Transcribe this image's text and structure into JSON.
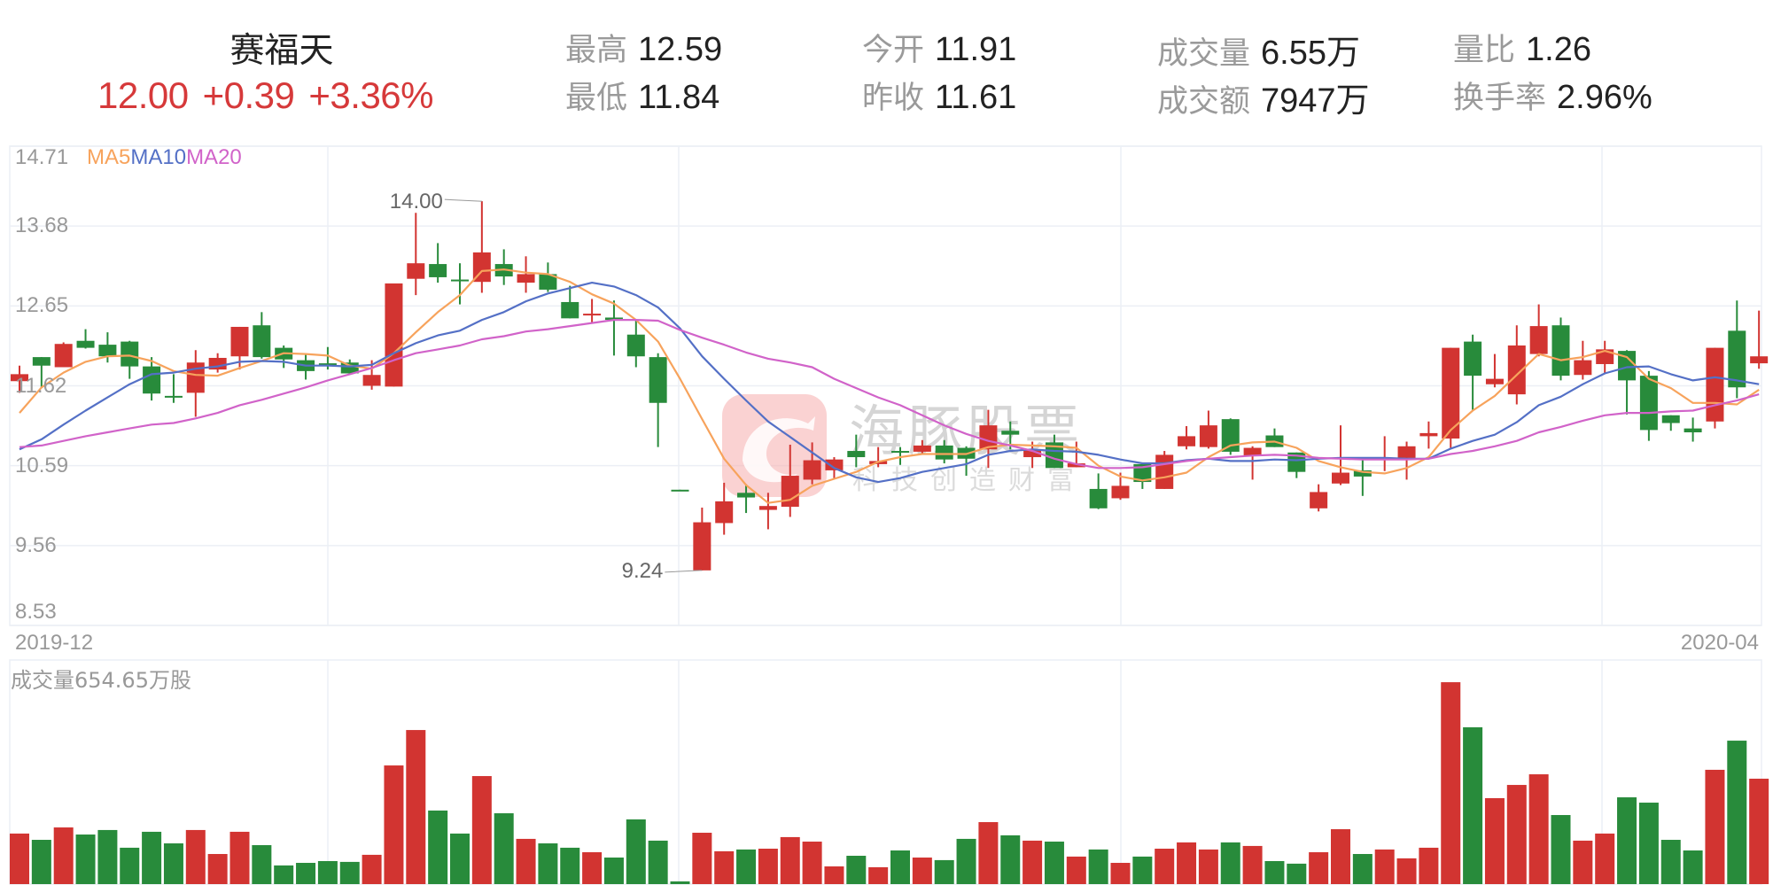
{
  "header": {
    "stock_name": "赛福天",
    "price": "12.00",
    "change": "+0.39",
    "change_pct": "+3.36%",
    "stats": [
      {
        "label": "最高",
        "value": "12.59"
      },
      {
        "label": "最低",
        "value": "11.84"
      },
      {
        "label": "今开",
        "value": "11.91"
      },
      {
        "label": "昨收",
        "value": "11.61"
      },
      {
        "label": "成交量",
        "value": "6.55万"
      },
      {
        "label": "成交额",
        "value": "7947万"
      },
      {
        "label": "量比",
        "value": "1.26"
      },
      {
        "label": "换手率",
        "value": "2.96%"
      }
    ]
  },
  "legend": {
    "ma5": "MA5",
    "ma10": "MA10",
    "ma20": "MA20"
  },
  "volume_label": "成交量654.65万股",
  "watermark": {
    "brand": "海豚股票",
    "slogan": "科技创造财富"
  },
  "colors": {
    "up": "#d23431",
    "down": "#288b3b",
    "ma5": "#f7a35c",
    "ma10": "#5470c6",
    "ma20": "#d163c9",
    "quote": "#d6393a",
    "grid": "#eceff5",
    "axis_text": "#999999"
  },
  "chart_data": [
    {
      "type": "candlestick",
      "title": "赛福天",
      "xlabel": "",
      "ylabel": "",
      "x_tick_labels": [
        "2019-12",
        "2020-04"
      ],
      "y_ticks": [
        14.71,
        13.68,
        12.65,
        11.62,
        10.59,
        9.56,
        8.53
      ],
      "ylim": [
        8.53,
        14.71
      ],
      "grid": true,
      "legend": [
        "MA5",
        "MA10",
        "MA20"
      ],
      "annotations": [
        {
          "label": "14.00",
          "index": 21,
          "type": "max"
        },
        {
          "label": "9.24",
          "index": 31,
          "type": "min"
        }
      ],
      "ohlc_fields": [
        "open",
        "high",
        "low",
        "close"
      ],
      "ohlc": [
        [
          11.68,
          11.88,
          11.53,
          11.77
        ],
        [
          11.99,
          11.99,
          11.59,
          11.88
        ],
        [
          11.86,
          12.18,
          11.86,
          12.16
        ],
        [
          12.2,
          12.35,
          12.1,
          12.11
        ],
        [
          12.15,
          12.31,
          11.92,
          12.0
        ],
        [
          12.19,
          12.2,
          11.71,
          11.87
        ],
        [
          11.87,
          11.99,
          11.43,
          11.52
        ],
        [
          11.49,
          11.77,
          11.4,
          11.47
        ],
        [
          11.53,
          12.08,
          11.22,
          11.92
        ],
        [
          11.83,
          12.04,
          11.79,
          11.98
        ],
        [
          12.0,
          12.38,
          11.83,
          12.38
        ],
        [
          12.4,
          12.57,
          11.97,
          11.99
        ],
        [
          12.11,
          12.14,
          11.85,
          11.96
        ],
        [
          11.95,
          12.02,
          11.7,
          11.81
        ],
        [
          11.91,
          12.12,
          11.83,
          11.88
        ],
        [
          11.92,
          11.96,
          11.78,
          11.78
        ],
        [
          11.62,
          11.95,
          11.57,
          11.76
        ],
        [
          11.61,
          12.94,
          11.61,
          12.94
        ],
        [
          13.0,
          13.85,
          12.79,
          13.2
        ],
        [
          13.19,
          13.46,
          12.95,
          13.02
        ],
        [
          12.99,
          13.2,
          12.67,
          12.97
        ],
        [
          12.96,
          14.0,
          12.82,
          13.34
        ],
        [
          13.19,
          13.38,
          12.92,
          13.03
        ],
        [
          12.95,
          13.29,
          12.82,
          13.06
        ],
        [
          13.06,
          13.21,
          12.83,
          12.86
        ],
        [
          12.7,
          12.91,
          12.49,
          12.49
        ],
        [
          12.54,
          12.74,
          12.43,
          12.55
        ],
        [
          12.5,
          12.72,
          12.01,
          12.47
        ],
        [
          12.28,
          12.46,
          11.86,
          12.0
        ],
        [
          11.99,
          12.04,
          10.83,
          11.4
        ],
        [
          10.28,
          10.28,
          10.27,
          10.27
        ],
        [
          9.24,
          10.05,
          9.24,
          9.86
        ],
        [
          9.85,
          10.37,
          9.7,
          10.13
        ],
        [
          10.24,
          10.35,
          9.98,
          10.18
        ],
        [
          10.02,
          10.24,
          9.77,
          10.07
        ],
        [
          10.06,
          10.86,
          9.93,
          10.46
        ],
        [
          10.41,
          10.89,
          10.35,
          10.66
        ],
        [
          10.53,
          10.7,
          10.42,
          10.67
        ],
        [
          10.78,
          10.99,
          10.57,
          10.7
        ],
        [
          10.61,
          10.83,
          10.57,
          10.65
        ],
        [
          10.78,
          10.83,
          10.6,
          10.77
        ],
        [
          10.77,
          10.92,
          10.74,
          10.85
        ],
        [
          10.85,
          10.92,
          10.62,
          10.67
        ],
        [
          10.82,
          10.84,
          10.46,
          10.68
        ],
        [
          10.8,
          11.31,
          10.56,
          11.11
        ],
        [
          11.04,
          11.16,
          10.8,
          10.99
        ],
        [
          10.7,
          10.9,
          10.56,
          10.8
        ],
        [
          10.89,
          10.99,
          10.56,
          10.56
        ],
        [
          10.57,
          10.9,
          10.57,
          10.62
        ],
        [
          10.29,
          10.49,
          10.03,
          10.04
        ],
        [
          10.17,
          10.5,
          10.15,
          10.33
        ],
        [
          10.61,
          10.61,
          10.29,
          10.38
        ],
        [
          10.29,
          10.78,
          10.29,
          10.73
        ],
        [
          10.84,
          11.1,
          10.8,
          10.97
        ],
        [
          10.83,
          11.3,
          10.81,
          11.11
        ],
        [
          11.19,
          11.2,
          10.73,
          10.77
        ],
        [
          10.72,
          10.84,
          10.41,
          10.82
        ],
        [
          10.98,
          11.07,
          10.83,
          10.83
        ],
        [
          10.76,
          10.76,
          10.43,
          10.51
        ],
        [
          10.04,
          10.35,
          10.0,
          10.25
        ],
        [
          10.36,
          11.11,
          10.34,
          10.5
        ],
        [
          10.53,
          10.69,
          10.2,
          10.45
        ],
        [
          10.68,
          10.97,
          10.52,
          10.69
        ],
        [
          10.69,
          10.9,
          10.41,
          10.84
        ],
        [
          10.97,
          11.16,
          10.81,
          11.01
        ],
        [
          10.94,
          12.11,
          10.81,
          12.11
        ],
        [
          12.19,
          12.28,
          11.31,
          11.75
        ],
        [
          11.64,
          12.03,
          11.6,
          11.71
        ],
        [
          11.51,
          12.4,
          11.38,
          12.14
        ],
        [
          12.03,
          12.67,
          12.0,
          12.39
        ],
        [
          12.4,
          12.5,
          11.69,
          11.75
        ],
        [
          11.76,
          12.2,
          11.7,
          11.95
        ],
        [
          11.9,
          12.2,
          11.78,
          12.09
        ],
        [
          12.07,
          12.08,
          11.25,
          11.69
        ],
        [
          11.75,
          11.81,
          10.91,
          11.05
        ],
        [
          11.24,
          11.24,
          11.04,
          11.14
        ],
        [
          11.07,
          11.21,
          10.9,
          11.02
        ],
        [
          11.16,
          12.11,
          11.07,
          12.11
        ],
        [
          12.33,
          12.72,
          11.46,
          11.6
        ],
        [
          11.91,
          12.59,
          11.84,
          12.0
        ]
      ],
      "series": [
        {
          "name": "MA5",
          "values": [
            11.27,
            11.6,
            11.79,
            11.93,
            12.0,
            12.01,
            11.94,
            11.81,
            11.76,
            11.75,
            11.85,
            11.94,
            12.04,
            12.03,
            12.01,
            11.88,
            11.84,
            12.04,
            12.31,
            12.57,
            12.79,
            13.1,
            13.12,
            13.08,
            13.06,
            12.96,
            12.8,
            12.68,
            12.47,
            12.19,
            11.71,
            11.19,
            10.68,
            10.34,
            10.11,
            10.15,
            10.33,
            10.42,
            10.51,
            10.64,
            10.7,
            10.74,
            10.74,
            10.74,
            10.83,
            10.86,
            10.85,
            10.84,
            10.82,
            10.59,
            10.45,
            10.4,
            10.44,
            10.5,
            10.7,
            10.85,
            10.89,
            10.9,
            10.82,
            10.65,
            10.57,
            10.51,
            10.49,
            10.56,
            10.7,
            11.05,
            11.3,
            11.49,
            11.76,
            12.03,
            11.95,
            11.99,
            12.07,
            11.99,
            11.71,
            11.59,
            11.4,
            11.4,
            11.38,
            11.57
          ]
        },
        {
          "name": "MA10",
          "values": [
            10.8,
            10.93,
            11.12,
            11.3,
            11.47,
            11.64,
            11.77,
            11.79,
            11.84,
            11.87,
            11.93,
            11.94,
            11.93,
            11.88,
            11.88,
            11.87,
            11.89,
            12.04,
            12.17,
            12.27,
            12.33,
            12.47,
            12.57,
            12.71,
            12.81,
            12.88,
            12.95,
            12.9,
            12.79,
            12.63,
            12.36,
            12.0,
            11.71,
            11.43,
            11.16,
            10.96,
            10.76,
            10.56,
            10.44,
            10.38,
            10.43,
            10.51,
            10.56,
            10.61,
            10.73,
            10.78,
            10.8,
            10.78,
            10.77,
            10.73,
            10.67,
            10.62,
            10.62,
            10.66,
            10.68,
            10.65,
            10.65,
            10.67,
            10.66,
            10.68,
            10.69,
            10.69,
            10.69,
            10.68,
            10.68,
            10.81,
            10.91,
            10.99,
            11.15,
            11.37,
            11.48,
            11.64,
            11.78,
            11.86,
            11.87,
            11.77,
            11.69,
            11.73,
            11.69,
            11.64
          ]
        },
        {
          "name": "MA20",
          "values": [
            10.83,
            10.85,
            10.91,
            10.97,
            11.02,
            11.07,
            11.12,
            11.14,
            11.2,
            11.27,
            11.37,
            11.44,
            11.52,
            11.6,
            11.69,
            11.77,
            11.85,
            11.95,
            12.04,
            12.09,
            12.14,
            12.22,
            12.26,
            12.32,
            12.35,
            12.39,
            12.43,
            12.47,
            12.47,
            12.46,
            12.34,
            12.24,
            12.15,
            12.05,
            11.97,
            11.92,
            11.86,
            11.71,
            11.59,
            11.47,
            11.37,
            11.24,
            11.11,
            11.0,
            10.91,
            10.85,
            10.78,
            10.68,
            10.61,
            10.56,
            10.56,
            10.57,
            10.61,
            10.65,
            10.68,
            10.7,
            10.72,
            10.73,
            10.72,
            10.69,
            10.68,
            10.67,
            10.67,
            10.67,
            10.68,
            10.74,
            10.78,
            10.84,
            10.91,
            11.02,
            11.09,
            11.17,
            11.24,
            11.27,
            11.27,
            11.29,
            11.3,
            11.37,
            11.43,
            11.51
          ]
        }
      ]
    },
    {
      "type": "bar",
      "title": "成交量654.65万股",
      "ylabel": "万股",
      "ylim": [
        0,
        1392
      ],
      "values": [
        314,
        275,
        352,
        308,
        336,
        226,
        325,
        253,
        336,
        187,
        325,
        242,
        116,
        132,
        143,
        138,
        182,
        737,
        957,
        457,
        314,
        671,
        440,
        281,
        253,
        226,
        198,
        165,
        402,
        270,
        17,
        319,
        204,
        215,
        220,
        292,
        264,
        110,
        176,
        105,
        209,
        165,
        149,
        281,
        385,
        303,
        270,
        264,
        171,
        215,
        132,
        171,
        220,
        259,
        215,
        259,
        237,
        143,
        127,
        198,
        341,
        187,
        215,
        160,
        226,
        1254,
        974,
        534,
        616,
        682,
        429,
        270,
        314,
        539,
        506,
        275,
        209,
        710,
        891,
        654.65
      ]
    }
  ]
}
